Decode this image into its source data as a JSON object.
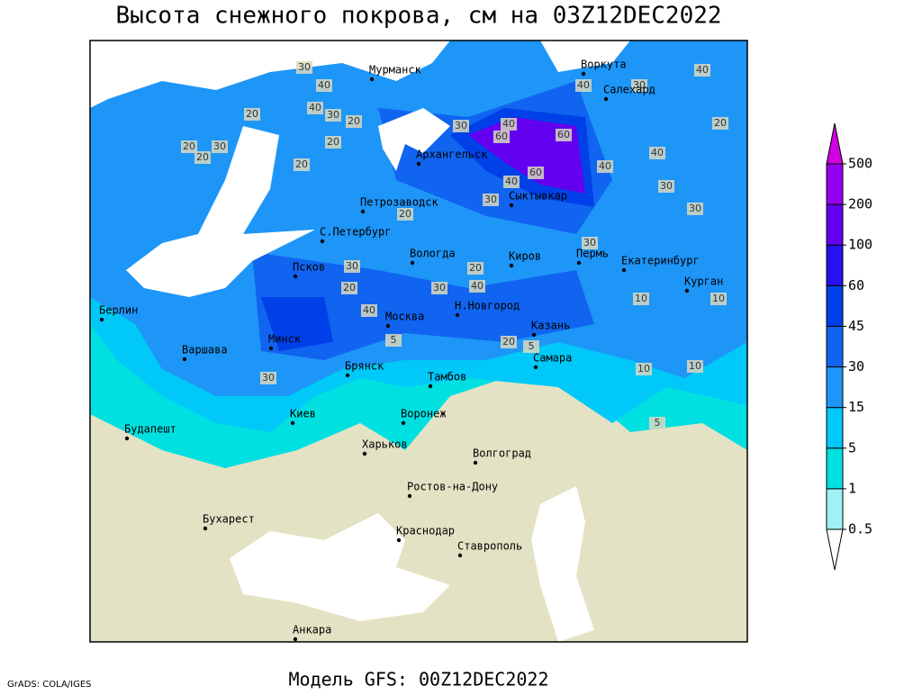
{
  "title": "Высота снежного покрова, см на 03Z12DEC2022",
  "subtitle": "Модель GFS: 00Z12DEC2022",
  "credit": "GrADS: COLA/IGES",
  "cities": [
    "Мурманск",
    "Воркута",
    "Салехард",
    "Архангельск",
    "Сыктывкар",
    "Петрозаводск",
    "С.Петербург",
    "Вологда",
    "Киров",
    "Пермь",
    "Екатеринбург",
    "Курган",
    "Псков",
    "Н.Новгород",
    "Казань",
    "Берлин",
    "Москва",
    "Минск",
    "Варшава",
    "Самара",
    "Брянск",
    "Тамбов",
    "Киев",
    "Воронеж",
    "Будапешт",
    "Харьков",
    "Волгоград",
    "Ростов-на-Дону",
    "Бухарест",
    "Краснодар",
    "Ставрополь",
    "Анкара"
  ],
  "contour_labels": [
    30,
    40,
    40,
    40,
    20,
    40,
    30,
    20,
    20,
    30,
    20,
    20,
    20,
    30,
    40,
    60,
    60,
    40,
    60,
    40,
    30,
    40,
    30,
    30,
    30,
    20,
    30,
    40,
    20,
    20,
    40,
    20,
    30,
    30,
    10,
    10,
    20,
    30,
    10,
    5,
    5,
    5,
    10
  ],
  "legend": {
    "levels": [
      0.5,
      1,
      5,
      15,
      30,
      45,
      60,
      100,
      200,
      500
    ],
    "colors": [
      "#ffffff",
      "#a0f0f8",
      "#00e0e0",
      "#00c8f8",
      "#1e96f8",
      "#1064f0",
      "#0040e8",
      "#2810f0",
      "#6400f0",
      "#9600f0",
      "#d000e0"
    ]
  }
}
